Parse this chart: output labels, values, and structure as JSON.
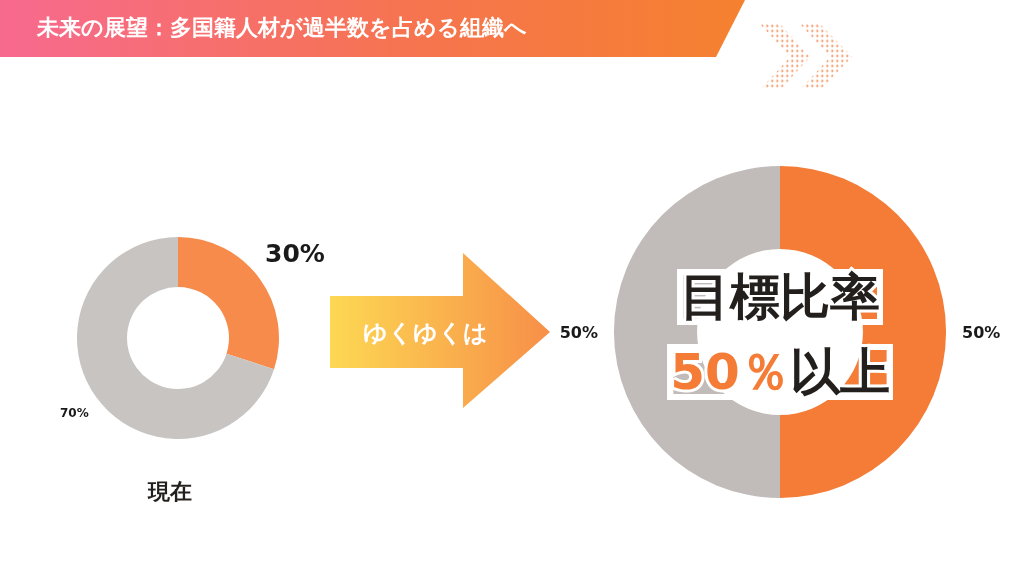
{
  "chart_data": [
    {
      "type": "donut",
      "title": "未来の展望：多国籍人材が過半数を占める組織へ",
      "categories": [
        null,
        null
      ],
      "values": [
        30,
        70
      ],
      "colors": [
        "#f78b4c",
        "#c8c4c2"
      ],
      "value_labels": [
        "30%",
        "70%"
      ],
      "annotations": [
        "現在",
        "ゆくゆくは"
      ]
    },
    {
      "type": "donut",
      "categories": [
        null,
        null
      ],
      "values": [
        50,
        50
      ],
      "colors": [
        "#f47c36",
        "#c1bcb9"
      ],
      "value_labels": [
        "50%",
        "50%"
      ],
      "annotations": [
        "目標比率",
        "50％以上"
      ]
    }
  ]
}
